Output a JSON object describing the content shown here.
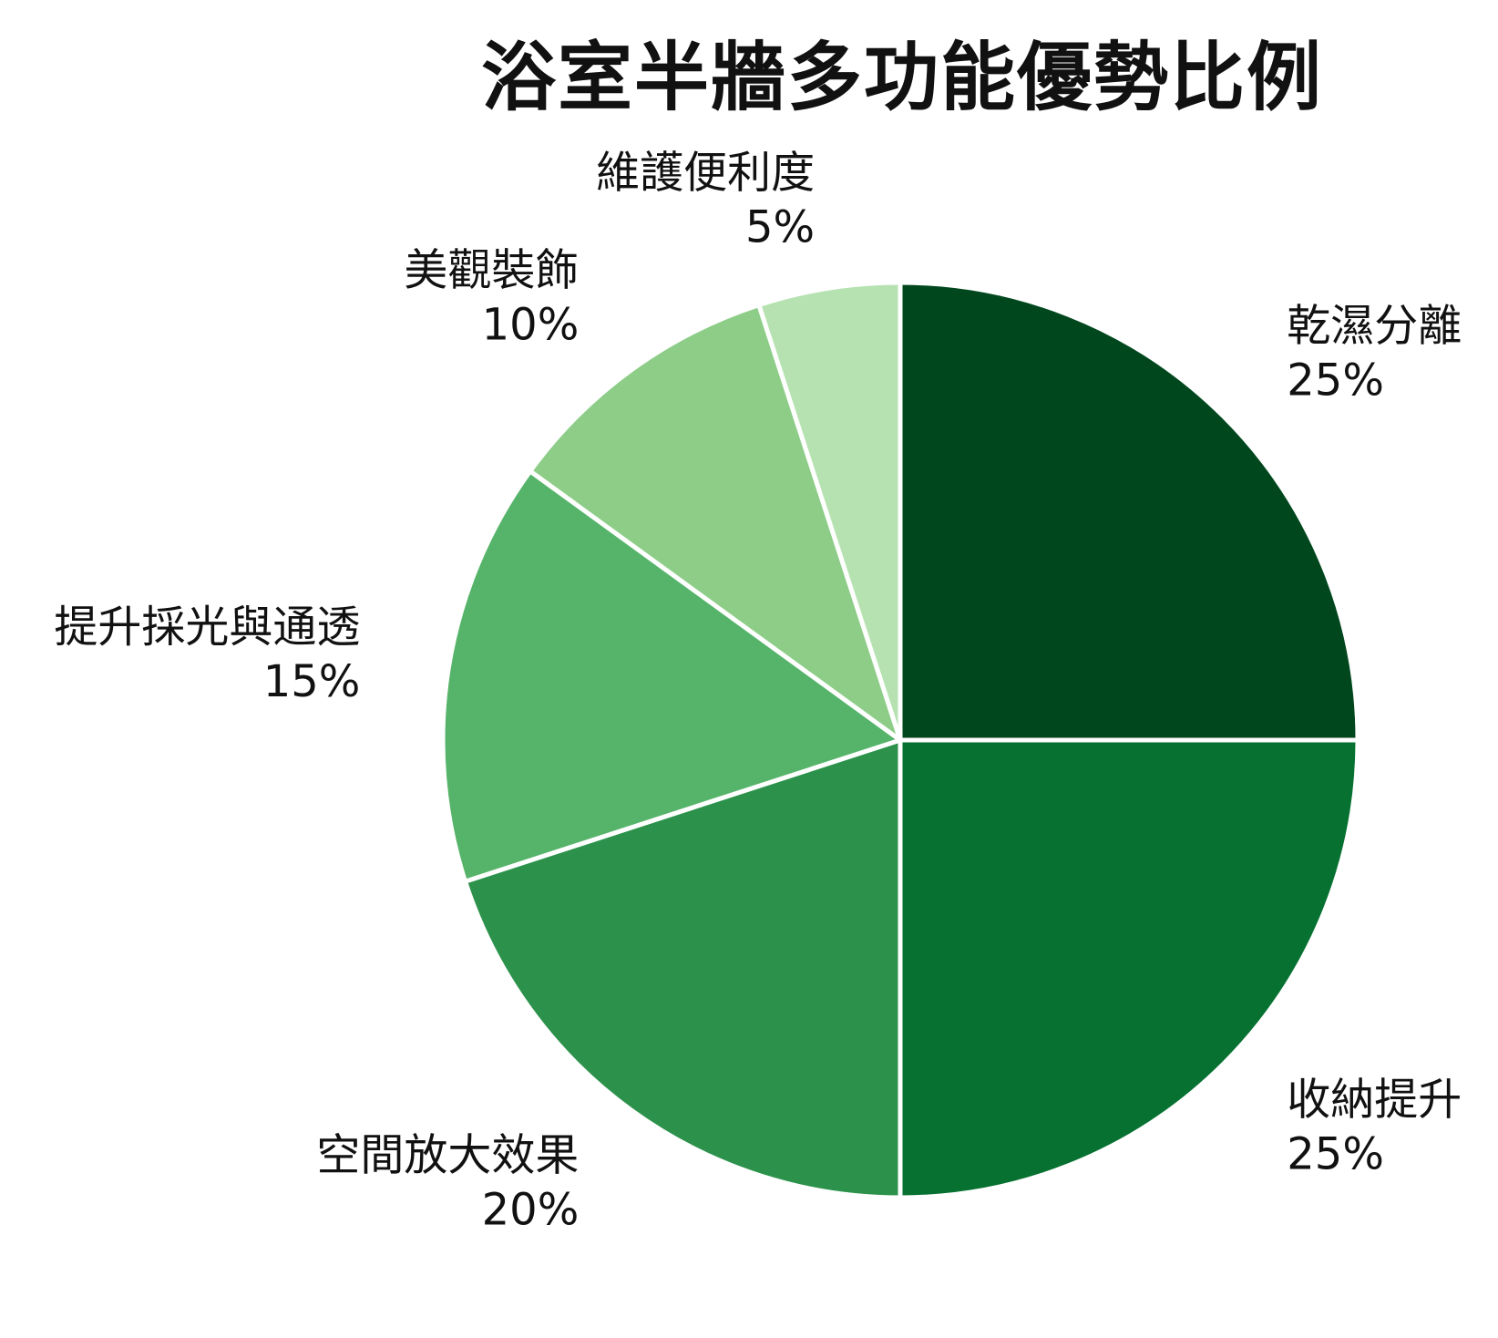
{
  "chart_data": {
    "type": "pie",
    "title": "浴室半牆多功能優勢比例",
    "slices": [
      {
        "label": "乾濕分離",
        "value": 25,
        "value_label": "25%",
        "color": "#00471e"
      },
      {
        "label": "收納提升",
        "value": 25,
        "value_label": "25%",
        "color": "#067131"
      },
      {
        "label": "空間放大效果",
        "value": 20,
        "value_label": "20%",
        "color": "#2c924b"
      },
      {
        "label": "提升採光與通透",
        "value": 15,
        "value_label": "15%",
        "color": "#56b46a"
      },
      {
        "label": "美觀裝飾",
        "value": 10,
        "value_label": "10%",
        "color": "#8dcd88"
      },
      {
        "label": "維護便利度",
        "value": 5,
        "value_label": "5%",
        "color": "#b6e2b1"
      }
    ],
    "start_angle_deg": 0,
    "direction": "clockwise",
    "slice_border_color": "#ffffff"
  }
}
